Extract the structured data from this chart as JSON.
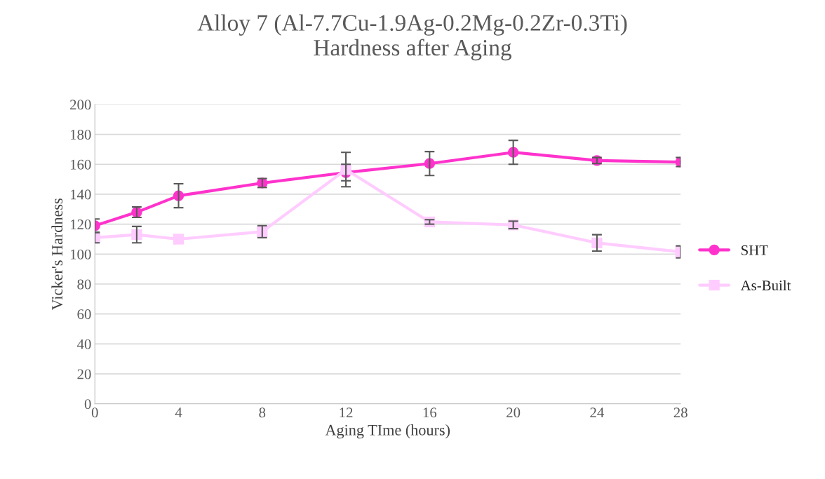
{
  "chart_data": {
    "type": "line",
    "title": "Alloy 7 (Al-7.7Cu-1.9Ag-0.2Mg-0.2Zr-0.3Ti)\nHardness after Aging",
    "xlabel": "Aging TIme (hours)",
    "ylabel": "Vicker's Hardness",
    "x": [
      0,
      2,
      4,
      8,
      12,
      16,
      20,
      24,
      28
    ],
    "series": [
      {
        "name": "SHT",
        "color": "#ff33cc",
        "marker": "circle",
        "values": [
          119,
          128,
          139,
          147.5,
          154.5,
          160.5,
          168,
          162.5,
          161.5
        ],
        "errors": [
          4.5,
          3.5,
          8,
          3,
          5.5,
          8,
          8,
          2,
          3
        ]
      },
      {
        "name": "As-Built",
        "color": "#ffccff",
        "marker": "square",
        "values": [
          111,
          113,
          110,
          115,
          156.5,
          121.5,
          119.5,
          107.5,
          101.5
        ],
        "errors": [
          3.5,
          5.5,
          null,
          4,
          11.5,
          1.5,
          2.5,
          5.5,
          4
        ]
      }
    ],
    "xlim": [
      0,
      28
    ],
    "xticks": [
      0,
      4,
      8,
      12,
      16,
      20,
      24,
      28
    ],
    "ylim": [
      0,
      200
    ],
    "yticks": [
      0,
      20,
      40,
      60,
      80,
      100,
      120,
      140,
      160,
      180,
      200
    ],
    "grid": "y",
    "legend": "right",
    "line_style": "solid"
  }
}
